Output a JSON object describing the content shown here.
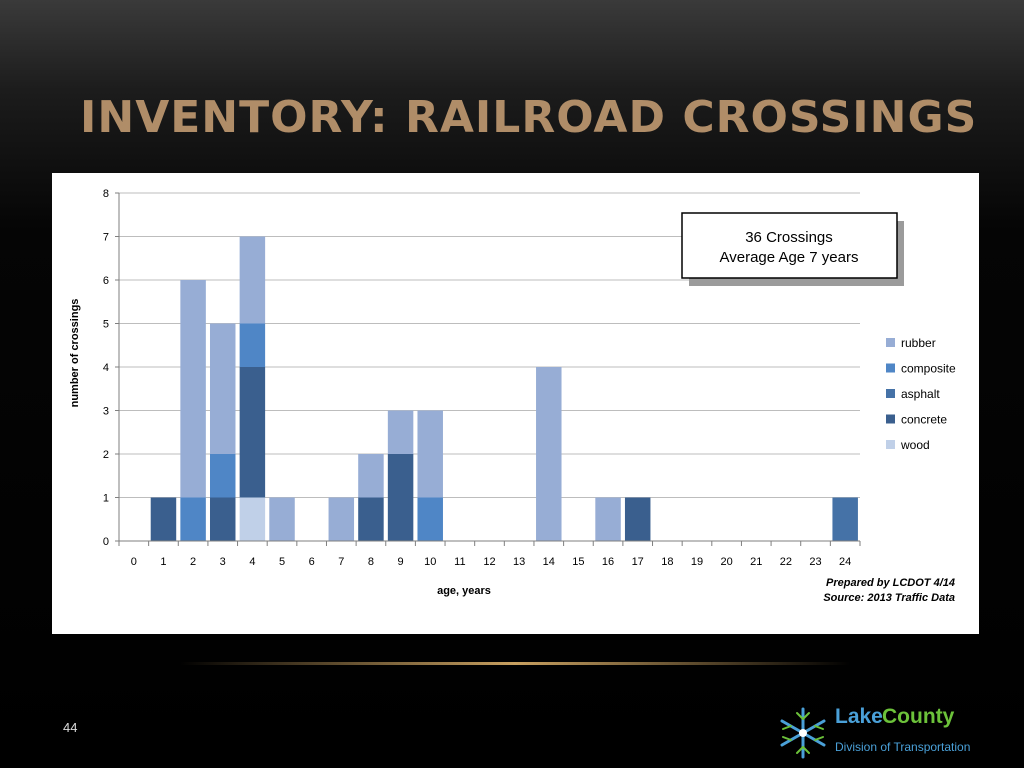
{
  "slide": {
    "title": "INVENTORY: RAILROAD CROSSINGS",
    "page_number": "44",
    "logo": {
      "word1": "Lake",
      "word2": "County",
      "subtitle": "Division of Transportation"
    }
  },
  "colors": {
    "rubber": "#97add5",
    "composite": "#4f86c6",
    "asphalt": "#4572a7",
    "concrete": "#3a5f8e",
    "wood": "#c0d0e8",
    "title": "#b08d68"
  },
  "chart_data": {
    "type": "bar",
    "stacked": true,
    "ylabel": "number of crossings",
    "xlabel": "age, years",
    "ylim": [
      0,
      8
    ],
    "yticks": [
      0,
      1,
      2,
      3,
      4,
      5,
      6,
      7,
      8
    ],
    "grid": true,
    "legend_position": "right",
    "categories": [
      "0",
      "1",
      "2",
      "3",
      "4",
      "5",
      "6",
      "7",
      "8",
      "9",
      "10",
      "11",
      "12",
      "13",
      "14",
      "15",
      "16",
      "17",
      "18",
      "19",
      "20",
      "21",
      "22",
      "23",
      "24"
    ],
    "series": [
      {
        "name": "wood",
        "values": [
          0,
          0,
          0,
          0,
          1,
          0,
          0,
          0,
          0,
          0,
          0,
          0,
          0,
          0,
          0,
          0,
          0,
          0,
          0,
          0,
          0,
          0,
          0,
          0,
          0
        ]
      },
      {
        "name": "concrete",
        "values": [
          0,
          1,
          0,
          1,
          3,
          0,
          0,
          0,
          1,
          2,
          0,
          0,
          0,
          0,
          0,
          0,
          0,
          1,
          0,
          0,
          0,
          0,
          0,
          0,
          0
        ]
      },
      {
        "name": "asphalt",
        "values": [
          0,
          0,
          0,
          0,
          0,
          0,
          0,
          0,
          0,
          0,
          0,
          0,
          0,
          0,
          0,
          0,
          0,
          0,
          0,
          0,
          0,
          0,
          0,
          0,
          1
        ]
      },
      {
        "name": "composite",
        "values": [
          0,
          0,
          1,
          1,
          1,
          0,
          0,
          0,
          0,
          0,
          1,
          0,
          0,
          0,
          0,
          0,
          0,
          0,
          0,
          0,
          0,
          0,
          0,
          0,
          0
        ]
      },
      {
        "name": "rubber",
        "values": [
          0,
          0,
          5,
          3,
          2,
          1,
          0,
          1,
          1,
          1,
          2,
          0,
          0,
          0,
          4,
          0,
          1,
          0,
          0,
          0,
          0,
          0,
          0,
          0,
          0
        ]
      }
    ],
    "legend_order": [
      "rubber",
      "composite",
      "asphalt",
      "concrete",
      "wood"
    ],
    "annotation": {
      "line1": "36 Crossings",
      "line2": "Average Age 7 years"
    },
    "footnote": {
      "line1": "Prepared by LCDOT 4/14",
      "line2": "Source:  2013 Traffic Data"
    }
  }
}
